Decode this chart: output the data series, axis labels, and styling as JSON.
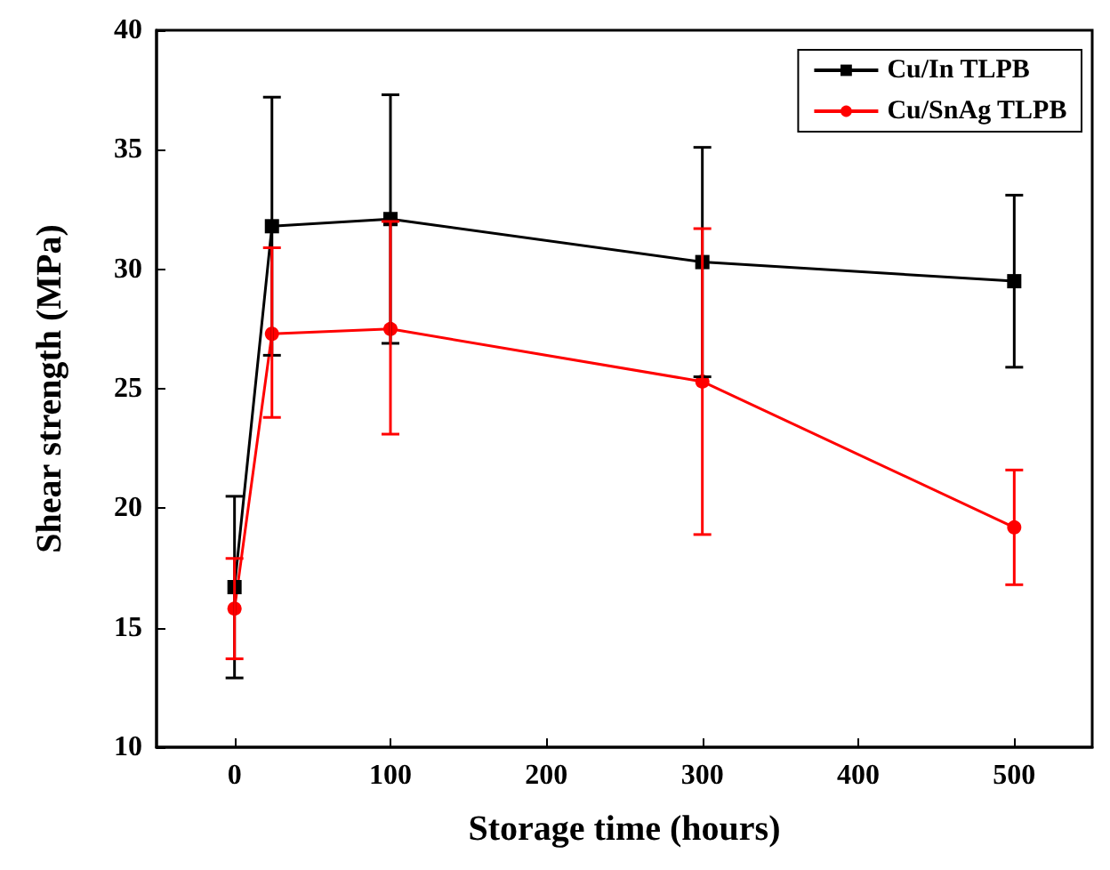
{
  "chart_data": {
    "type": "line",
    "xlabel": "Storage time (hours)",
    "ylabel": "Shear strength (MPa)",
    "xlim": [
      -50,
      550
    ],
    "xticks": [
      0,
      100,
      200,
      300,
      400,
      500
    ],
    "ylim": [
      10,
      40
    ],
    "yticks": [
      10,
      15,
      20,
      25,
      30,
      35,
      40
    ],
    "grid": false,
    "legend": "top right",
    "series": [
      {
        "name": "Cu/In TLPB",
        "color": "#000000",
        "marker": "square",
        "x": [
          0,
          24,
          100,
          300,
          500
        ],
        "values": [
          16.7,
          31.8,
          32.1,
          30.3,
          29.5
        ],
        "errors": [
          [
            12.9,
            20.5
          ],
          [
            26.4,
            37.2
          ],
          [
            26.9,
            37.3
          ],
          [
            25.5,
            35.1
          ],
          [
            25.9,
            33.1
          ]
        ]
      },
      {
        "name": "Cu/SnAg TLPB",
        "color": "#ff0000",
        "marker": "circle",
        "x": [
          0,
          24,
          100,
          300,
          500
        ],
        "values": [
          15.8,
          27.3,
          27.5,
          25.3,
          19.2
        ],
        "errors": [
          [
            13.7,
            17.9
          ],
          [
            23.8,
            30.9
          ],
          [
            23.1,
            32.0
          ],
          [
            18.9,
            31.7
          ],
          [
            16.8,
            21.6
          ]
        ]
      }
    ]
  }
}
